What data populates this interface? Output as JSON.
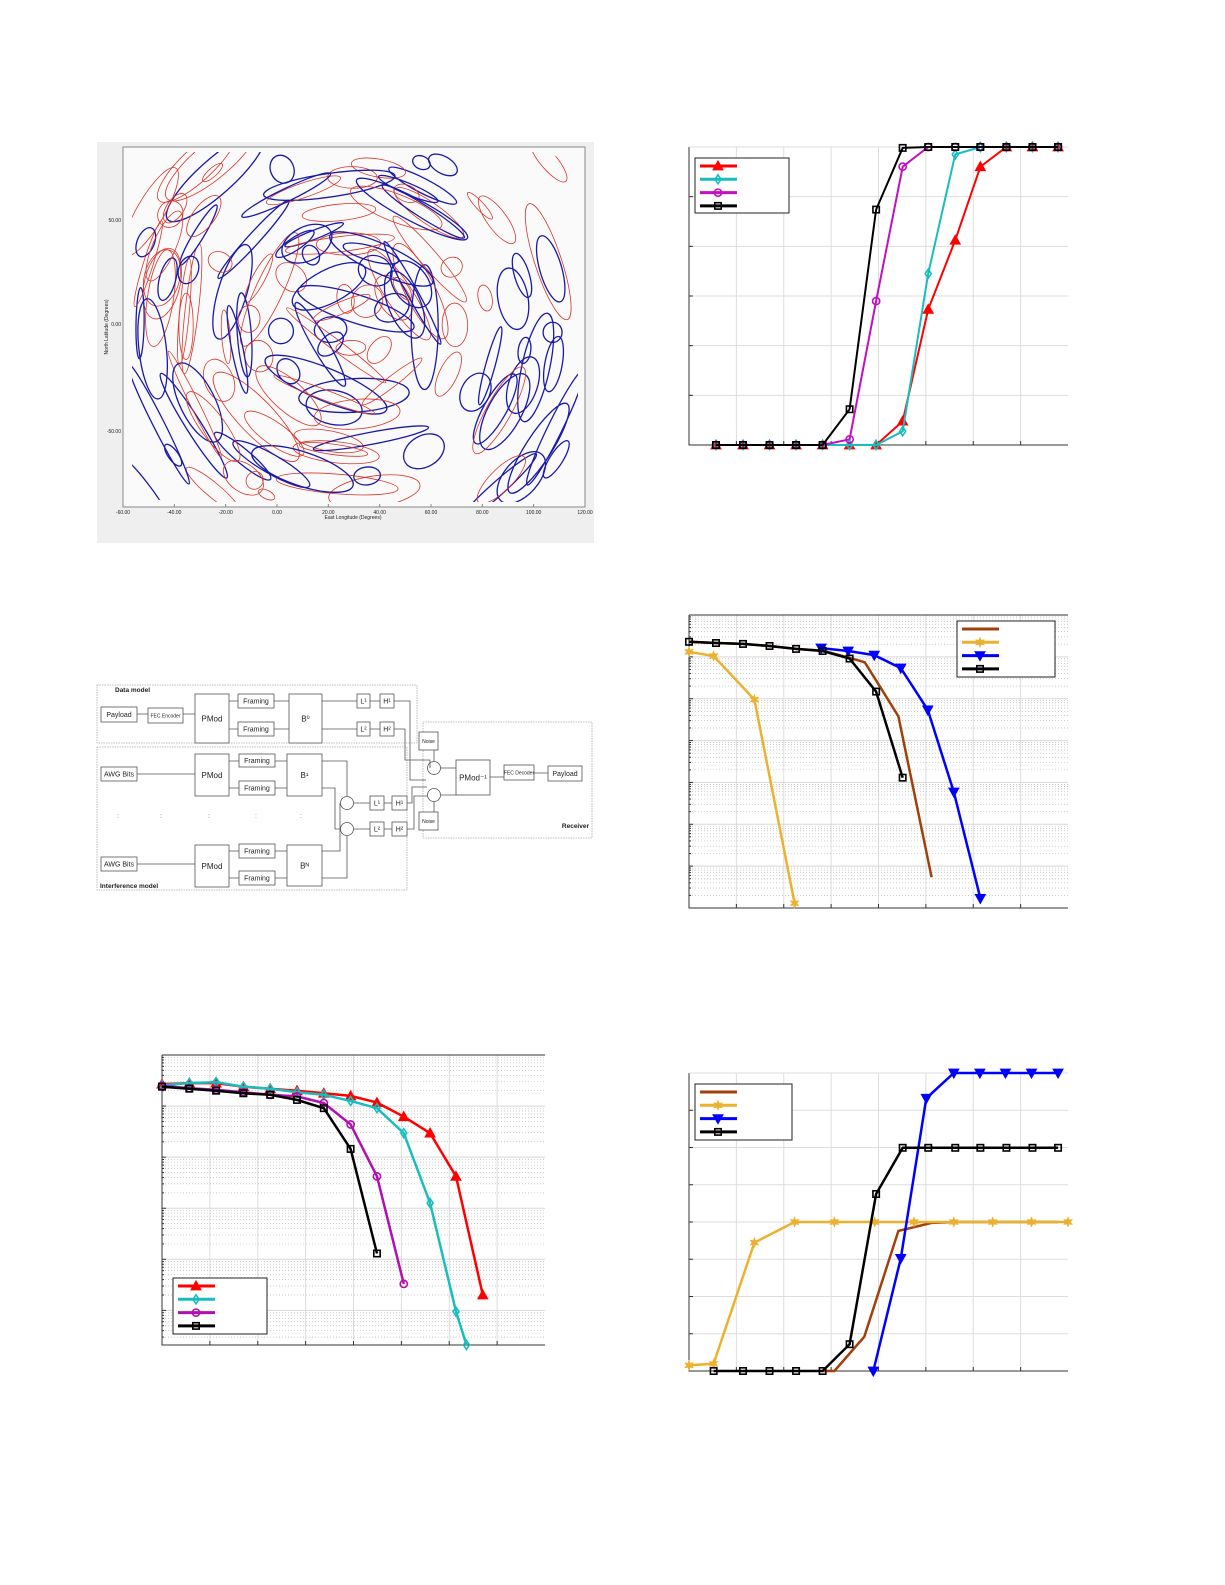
{
  "map_figure": {
    "x_axis_label": "East Longitude (Degrees)",
    "y_axis_label": "North Latitude (Degrees)",
    "x_ticks": [
      "-60.00",
      "-40.00",
      "-20.00",
      "0.00",
      "20.00",
      "40.00",
      "60.00",
      "80.00",
      "100.00",
      "120.00"
    ],
    "y_ticks": [
      "50.00",
      "0.00",
      "-50.00"
    ],
    "colors": {
      "contour_blue": "#1a1aa8",
      "contour_red": "#d8352a",
      "background": "#efefef"
    }
  },
  "diagram": {
    "data_model_label": "Data model",
    "interference_model_label": "Interference model",
    "receiver_label": "Receiver",
    "payload": "Payload",
    "fec_encoder": "FEC Encoder",
    "fec_decoder": "FEC Decoder",
    "pmod": "PMod",
    "pmod_inv": "PMod⁻¹",
    "framing": "Framing",
    "awg_bits": "AWG Bits",
    "noise": "Noise",
    "b0": "B⁰",
    "b1": "B¹",
    "bn": "Bᴺ",
    "l1": "L¹",
    "l2": "L²",
    "h1": "H¹",
    "h2": "H²"
  },
  "chart_data": [
    {
      "id": "chart-top-right",
      "type": "line",
      "y_scale": "linear",
      "xlim": [
        0,
        8
      ],
      "ylim": [
        0,
        1
      ],
      "grid": true,
      "legend": "top-left",
      "series": [
        {
          "color": "#ff0000",
          "marker": "triangle",
          "x": [
            0.57,
            1.14,
            1.7,
            2.26,
            2.82,
            3.39,
            3.95,
            4.51,
            5.05,
            5.62,
            6.15,
            6.7,
            7.25,
            7.79
          ],
          "y": [
            0,
            0,
            0,
            0,
            0,
            0,
            0,
            0.08,
            0.455,
            0.687,
            0.934,
            1,
            1,
            1
          ]
        },
        {
          "color": "#19bdbd",
          "marker": "diamond",
          "x": [
            0.57,
            1.14,
            1.7,
            2.26,
            2.82,
            3.39,
            3.95,
            4.51,
            5.05,
            5.62,
            6.15,
            6.7,
            7.25,
            7.79
          ],
          "y": [
            0,
            0,
            0,
            0,
            0,
            0,
            0,
            0.046,
            0.575,
            0.975,
            1,
            1,
            1,
            1
          ]
        },
        {
          "color": "#c010c0",
          "marker": "circle",
          "x": [
            0.57,
            1.14,
            1.7,
            2.26,
            2.82,
            3.39,
            3.95,
            4.51,
            5.05,
            5.62,
            6.15,
            6.7,
            7.25,
            7.79
          ],
          "y": [
            0,
            0,
            0,
            0,
            0,
            0.019,
            0.483,
            0.934,
            1,
            1,
            1,
            1,
            1,
            1
          ]
        },
        {
          "color": "#000000",
          "marker": "square",
          "x": [
            0.57,
            1.14,
            1.7,
            2.26,
            2.82,
            3.39,
            3.95,
            4.51,
            5.05,
            5.62,
            6.15,
            6.7,
            7.25,
            7.79
          ],
          "y": [
            0,
            0,
            0,
            0,
            0,
            0.12,
            0.79,
            0.997,
            1,
            1,
            1,
            1,
            1,
            1
          ]
        }
      ]
    },
    {
      "id": "chart-mid-right",
      "type": "line",
      "y_scale": "log",
      "xlim": [
        0,
        8
      ],
      "ylim": [
        1e-07,
        1
      ],
      "grid": true,
      "legend": "top-right",
      "series": [
        {
          "color": "#a0400a",
          "marker": "none",
          "x": [
            0,
            0.57,
            1.14,
            1.7,
            2.26,
            2.82,
            3.39,
            3.71,
            4.42,
            5.12
          ],
          "y": [
            0.229,
            0.214,
            0.204,
            0.182,
            0.155,
            0.141,
            0.095,
            0.074,
            0.0038,
            5.4e-07
          ]
        },
        {
          "color": "#ecb12e",
          "marker": "star",
          "x": [
            0,
            0.52,
            1.38,
            2.23
          ],
          "y": [
            0.132,
            0.105,
            0.0095,
            1.3e-07
          ]
        },
        {
          "color": "#0000ff",
          "marker": "triangle-down",
          "x": [
            2.79,
            3.36,
            3.91,
            4.47,
            5.04,
            5.59,
            6.15
          ],
          "y": [
            0.162,
            0.138,
            0.11,
            0.054,
            0.0054,
            5.9e-05,
            1.7e-07
          ]
        },
        {
          "color": "#000000",
          "marker": "square",
          "x": [
            0,
            0.57,
            1.14,
            1.7,
            2.26,
            2.82,
            3.39,
            3.95,
            4.51
          ],
          "y": [
            0.229,
            0.214,
            0.204,
            0.182,
            0.155,
            0.138,
            0.091,
            0.0148,
            0.00013
          ]
        }
      ]
    },
    {
      "id": "chart-bottom-left",
      "type": "line",
      "y_scale": "log",
      "xlim": [
        0,
        8
      ],
      "ylim": [
        2.1e-06,
        1
      ],
      "grid": true,
      "legend": "bottom-left",
      "series": [
        {
          "color": "#ff0000",
          "marker": "triangle",
          "x": [
            0,
            0.57,
            1.13,
            1.7,
            2.26,
            2.82,
            3.38,
            3.94,
            4.49,
            5.05,
            5.6,
            6.14,
            6.7
          ],
          "y": [
            0.269,
            0.282,
            0.282,
            0.24,
            0.219,
            0.2,
            0.178,
            0.158,
            0.117,
            0.062,
            0.0295,
            0.0042,
            2e-05
          ]
        },
        {
          "color": "#19bdbd",
          "marker": "diamond",
          "x": [
            0,
            0.57,
            1.13,
            1.7,
            2.26,
            2.82,
            3.38,
            3.94,
            4.49,
            5.05,
            5.6,
            6.14,
            6.36
          ],
          "y": [
            0.257,
            0.282,
            0.295,
            0.24,
            0.219,
            0.186,
            0.166,
            0.126,
            0.091,
            0.0295,
            0.00126,
            9.5e-06,
            2.1e-06
          ]
        },
        {
          "color": "#b010b0",
          "marker": "circle",
          "x": [
            0,
            0.57,
            1.13,
            1.7,
            2.26,
            2.82,
            3.38,
            3.94,
            4.49,
            5.05
          ],
          "y": [
            0.251,
            0.224,
            0.209,
            0.186,
            0.166,
            0.155,
            0.115,
            0.0437,
            0.0042,
            3.3e-05
          ]
        },
        {
          "color": "#000000",
          "marker": "square",
          "x": [
            0,
            0.57,
            1.13,
            1.7,
            2.26,
            2.82,
            3.38,
            3.94,
            4.49
          ],
          "y": [
            0.24,
            0.219,
            0.2,
            0.178,
            0.166,
            0.132,
            0.091,
            0.0145,
            0.00013
          ]
        }
      ]
    },
    {
      "id": "chart-bottom-right",
      "type": "line",
      "y_scale": "linear",
      "xlim": [
        0,
        8
      ],
      "ylim": [
        0,
        1
      ],
      "grid": true,
      "legend": "top-left",
      "series": [
        {
          "color": "#a0400a",
          "marker": "none",
          "x": [
            2.82,
            3.07,
            3.7,
            4.42,
            5.12,
            5.62,
            6.15,
            6.7,
            7.25,
            7.79
          ],
          "y": [
            0,
            0,
            0.115,
            0.47,
            0.497,
            0.5,
            0.5,
            0.5,
            0.5,
            0.5
          ]
        },
        {
          "color": "#ecb12e",
          "marker": "star",
          "x": [
            0,
            0.52,
            1.38,
            2.23,
            3.07,
            3.92,
            4.75,
            5.59,
            6.41,
            7.23,
            8
          ],
          "y": [
            0.019,
            0.024,
            0.431,
            0.5,
            0.5,
            0.5,
            0.5,
            0.5,
            0.5,
            0.5,
            0.5
          ]
        },
        {
          "color": "#0000ff",
          "marker": "triangle-down",
          "x": [
            3.89,
            4.47,
            5.01,
            5.59,
            6.14,
            6.68,
            7.23,
            7.79
          ],
          "y": [
            0,
            0.378,
            0.915,
            1,
            1,
            1,
            1,
            1
          ]
        },
        {
          "color": "#000000",
          "marker": "square",
          "x": [
            0.52,
            1.14,
            1.7,
            2.26,
            2.82,
            3.39,
            3.95,
            4.51,
            5.05,
            5.62,
            6.15,
            6.7,
            7.25,
            7.79
          ],
          "y": [
            0,
            0,
            0,
            0,
            0,
            0.09,
            0.594,
            0.749,
            0.749,
            0.749,
            0.749,
            0.749,
            0.749,
            0.749
          ]
        }
      ]
    }
  ]
}
